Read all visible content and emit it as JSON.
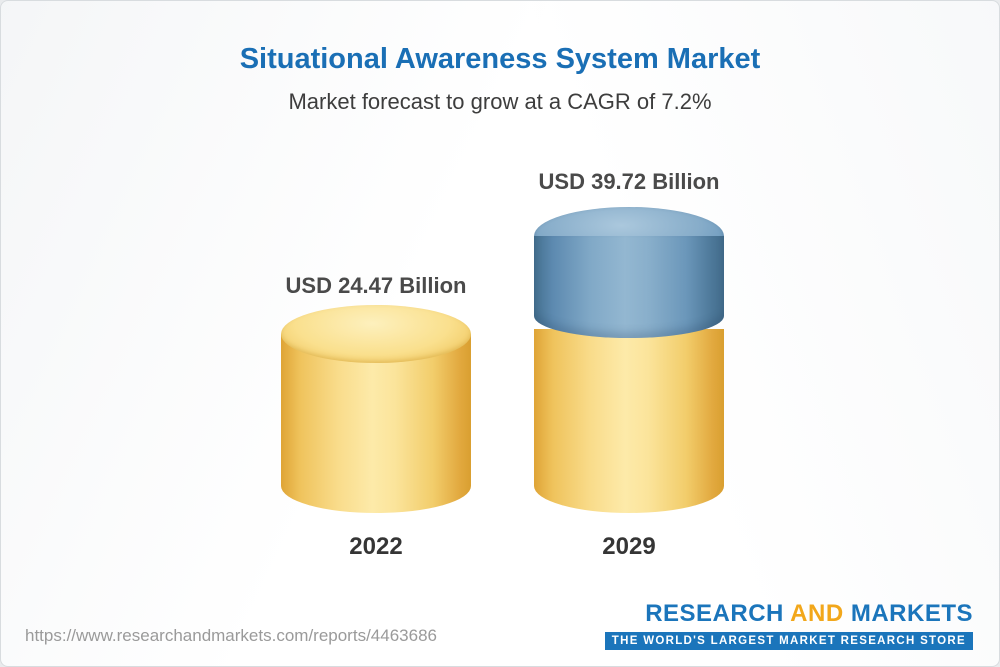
{
  "header": {
    "title": "Situational Awareness System Market",
    "subtitle": "Market forecast to grow at a CAGR of 7.2%"
  },
  "chart": {
    "bars": [
      {
        "year": "2022",
        "value_label": "USD 24.47 Billion"
      },
      {
        "year": "2029",
        "value_label": "USD 39.72 Billion"
      }
    ]
  },
  "chart_data": {
    "type": "bar",
    "subtype": "3d-cylinder",
    "title": "Situational Awareness System Market",
    "subtitle": "Market forecast to grow at a CAGR of 7.2%",
    "cagr_percent": 7.2,
    "categories": [
      "2022",
      "2029"
    ],
    "values": [
      24.47,
      39.72
    ],
    "value_labels": [
      "USD 24.47 Billion",
      "USD 39.72 Billion"
    ],
    "unit": "USD Billion",
    "ylim": [
      0,
      45
    ],
    "grid": false,
    "legend": false,
    "colors": {
      "base_segment": "#f6cf6d",
      "growth_segment": "#6695ba",
      "title": "#1a6fb5"
    }
  },
  "footer": {
    "url": "https://www.researchandmarkets.com/reports/4463686",
    "logo": {
      "research": "RESEARCH ",
      "and": "AND",
      "markets": " MARKETS",
      "tagline": "THE WORLD'S LARGEST MARKET RESEARCH STORE"
    }
  }
}
